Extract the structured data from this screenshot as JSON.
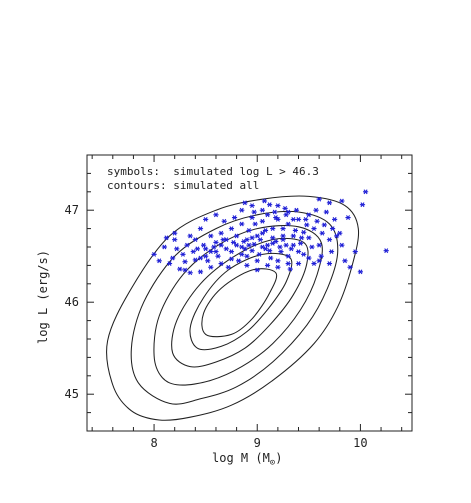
{
  "colors": {
    "points": "#1f1fd6",
    "contours": "#222222",
    "axes": "#222222",
    "background": "#ffffff"
  },
  "chart_data": {
    "type": "scatter",
    "xlabel_parts": [
      "log M (M",
      ")"
    ],
    "xlabel_symbol": "⊙",
    "ylabel": "log L (erg/s)",
    "legend": {
      "line1": "symbols:  simulated log L > 46.3",
      "line2": "contours: simulated all",
      "placement": "top-left"
    },
    "xlim": [
      7.35,
      10.5
    ],
    "ylim": [
      44.6,
      47.6
    ],
    "x_ticks": [
      8,
      9,
      10
    ],
    "x_tick_labels": [
      "8",
      "9",
      "10"
    ],
    "y_ticks": [
      45,
      46,
      47
    ],
    "y_tick_labels": [
      "45",
      "46",
      "47"
    ],
    "x_minor_step": 0.2,
    "y_minor_step": 0.2,
    "grid": false,
    "series": [
      {
        "type": "scatter",
        "marker": "asterisk",
        "points": [
          [
            9.05,
            47.0
          ],
          [
            9.12,
            47.06
          ],
          [
            8.95,
            47.05
          ],
          [
            8.85,
            47.0
          ],
          [
            9.2,
            47.05
          ],
          [
            9.3,
            46.98
          ],
          [
            9.6,
            47.12
          ],
          [
            9.7,
            47.08
          ],
          [
            9.82,
            47.1
          ],
          [
            10.02,
            47.06
          ],
          [
            10.05,
            47.2
          ],
          [
            9.88,
            46.92
          ],
          [
            9.8,
            46.75
          ],
          [
            9.95,
            46.55
          ],
          [
            10.25,
            46.56
          ],
          [
            10.0,
            46.33
          ],
          [
            9.55,
            46.42
          ],
          [
            9.45,
            46.52
          ],
          [
            9.35,
            46.62
          ],
          [
            9.25,
            46.72
          ],
          [
            9.15,
            46.8
          ],
          [
            9.05,
            46.88
          ],
          [
            8.95,
            46.92
          ],
          [
            8.85,
            46.85
          ],
          [
            8.75,
            46.8
          ],
          [
            8.65,
            46.75
          ],
          [
            8.55,
            46.72
          ],
          [
            8.45,
            46.8
          ],
          [
            8.35,
            46.72
          ],
          [
            8.2,
            46.68
          ],
          [
            8.12,
            46.7
          ],
          [
            8.0,
            46.52
          ],
          [
            8.05,
            46.45
          ],
          [
            8.15,
            46.42
          ],
          [
            8.25,
            46.36
          ],
          [
            8.35,
            46.32
          ],
          [
            8.45,
            46.33
          ],
          [
            8.55,
            46.38
          ],
          [
            8.65,
            46.42
          ],
          [
            8.75,
            46.47
          ],
          [
            8.85,
            46.52
          ],
          [
            8.95,
            46.56
          ],
          [
            9.05,
            46.6
          ],
          [
            9.15,
            46.64
          ],
          [
            9.25,
            46.68
          ],
          [
            9.35,
            46.72
          ],
          [
            9.45,
            46.76
          ],
          [
            9.55,
            46.8
          ],
          [
            9.65,
            46.84
          ],
          [
            9.75,
            46.9
          ],
          [
            9.5,
            46.95
          ],
          [
            9.4,
            46.9
          ],
          [
            9.3,
            46.85
          ],
          [
            9.2,
            46.9
          ],
          [
            9.1,
            46.95
          ],
          [
            9.0,
            46.72
          ],
          [
            8.9,
            46.68
          ],
          [
            8.8,
            46.62
          ],
          [
            8.7,
            46.58
          ],
          [
            8.6,
            46.55
          ],
          [
            8.5,
            46.5
          ],
          [
            8.4,
            46.46
          ],
          [
            8.3,
            46.44
          ],
          [
            8.9,
            46.4
          ],
          [
            9.0,
            46.35
          ],
          [
            9.1,
            46.4
          ],
          [
            9.2,
            46.45
          ],
          [
            9.3,
            46.5
          ],
          [
            9.4,
            46.42
          ],
          [
            9.6,
            46.62
          ],
          [
            9.7,
            46.68
          ],
          [
            9.5,
            46.7
          ],
          [
            8.78,
            46.92
          ],
          [
            8.68,
            46.88
          ],
          [
            8.58,
            46.6
          ],
          [
            8.48,
            46.62
          ],
          [
            8.38,
            46.55
          ],
          [
            8.28,
            46.52
          ],
          [
            8.18,
            46.48
          ],
          [
            8.92,
            46.78
          ],
          [
            9.02,
            46.52
          ],
          [
            9.12,
            46.56
          ],
          [
            9.22,
            46.6
          ],
          [
            9.32,
            46.36
          ],
          [
            9.42,
            46.64
          ],
          [
            9.62,
            46.5
          ],
          [
            9.72,
            46.55
          ],
          [
            9.82,
            46.62
          ],
          [
            9.58,
            46.88
          ],
          [
            9.48,
            46.84
          ],
          [
            9.38,
            47.0
          ],
          [
            9.28,
            46.95
          ],
          [
            9.18,
            46.92
          ],
          [
            9.08,
            46.78
          ],
          [
            8.98,
            46.85
          ],
          [
            8.88,
            46.58
          ],
          [
            8.82,
            46.45
          ],
          [
            8.72,
            46.38
          ],
          [
            8.62,
            46.5
          ],
          [
            8.52,
            46.45
          ],
          [
            8.42,
            46.58
          ],
          [
            8.32,
            46.62
          ],
          [
            8.22,
            46.58
          ],
          [
            8.92,
            46.62
          ],
          [
            9.03,
            46.68
          ],
          [
            9.13,
            46.48
          ],
          [
            9.23,
            46.55
          ],
          [
            9.33,
            46.58
          ],
          [
            9.43,
            46.7
          ],
          [
            9.53,
            46.6
          ],
          [
            9.63,
            46.75
          ],
          [
            9.73,
            46.8
          ],
          [
            8.97,
            46.98
          ],
          [
            9.07,
            47.1
          ],
          [
            8.88,
            47.08
          ],
          [
            9.17,
            46.98
          ],
          [
            9.27,
            47.02
          ],
          [
            9.37,
            46.78
          ],
          [
            9.47,
            46.9
          ],
          [
            9.57,
            47.0
          ],
          [
            9.67,
            46.98
          ],
          [
            9.77,
            46.72
          ],
          [
            8.7,
            46.68
          ],
          [
            8.6,
            46.65
          ],
          [
            8.5,
            46.58
          ],
          [
            8.4,
            46.68
          ],
          [
            8.3,
            46.35
          ],
          [
            8.8,
            46.72
          ],
          [
            8.9,
            46.5
          ],
          [
            9.0,
            46.45
          ],
          [
            9.1,
            46.62
          ],
          [
            9.2,
            46.38
          ],
          [
            9.3,
            46.42
          ],
          [
            9.4,
            46.55
          ],
          [
            9.5,
            46.48
          ],
          [
            8.95,
            46.7
          ],
          [
            9.05,
            46.75
          ],
          [
            9.15,
            46.7
          ],
          [
            9.25,
            46.8
          ],
          [
            9.35,
            46.9
          ],
          [
            8.85,
            46.6
          ],
          [
            8.75,
            46.55
          ],
          [
            8.65,
            46.62
          ],
          [
            8.55,
            46.55
          ],
          [
            8.45,
            46.48
          ],
          [
            8.97,
            46.63
          ],
          [
            9.08,
            46.58
          ],
          [
            9.18,
            46.66
          ],
          [
            9.28,
            46.62
          ],
          [
            8.87,
            46.66
          ],
          [
            8.77,
            46.65
          ],
          [
            8.67,
            46.68
          ],
          [
            9.6,
            46.45
          ],
          [
            9.7,
            46.42
          ],
          [
            9.85,
            46.45
          ],
          [
            9.9,
            46.38
          ],
          [
            8.1,
            46.6
          ],
          [
            8.2,
            46.75
          ],
          [
            8.5,
            46.9
          ],
          [
            8.6,
            46.95
          ]
        ]
      }
    ],
    "contours": [
      [
        [
          8.05,
          44.72
        ],
        [
          8.35,
          44.75
        ],
        [
          8.75,
          44.88
        ],
        [
          9.15,
          45.15
        ],
        [
          9.55,
          45.55
        ],
        [
          9.78,
          45.95
        ],
        [
          9.92,
          46.4
        ],
        [
          9.98,
          46.8
        ],
        [
          9.85,
          47.05
        ],
        [
          9.5,
          47.15
        ],
        [
          9.05,
          47.12
        ],
        [
          8.6,
          47.0
        ],
        [
          8.15,
          46.72
        ],
        [
          7.78,
          46.15
        ],
        [
          7.55,
          45.58
        ],
        [
          7.6,
          45.1
        ],
        [
          7.78,
          44.82
        ]
      ],
      [
        [
          8.15,
          44.9
        ],
        [
          8.45,
          44.95
        ],
        [
          8.8,
          45.08
        ],
        [
          9.15,
          45.35
        ],
        [
          9.48,
          45.75
        ],
        [
          9.68,
          46.15
        ],
        [
          9.78,
          46.55
        ],
        [
          9.7,
          46.85
        ],
        [
          9.4,
          46.98
        ],
        [
          9.0,
          46.95
        ],
        [
          8.6,
          46.8
        ],
        [
          8.2,
          46.5
        ],
        [
          7.9,
          46.0
        ],
        [
          7.78,
          45.5
        ],
        [
          7.85,
          45.12
        ]
      ],
      [
        [
          8.25,
          45.1
        ],
        [
          8.55,
          45.15
        ],
        [
          8.85,
          45.3
        ],
        [
          9.15,
          45.55
        ],
        [
          9.42,
          45.92
        ],
        [
          9.58,
          46.3
        ],
        [
          9.62,
          46.65
        ],
        [
          9.4,
          46.82
        ],
        [
          9.0,
          46.8
        ],
        [
          8.62,
          46.62
        ],
        [
          8.28,
          46.3
        ],
        [
          8.05,
          45.85
        ],
        [
          8.0,
          45.42
        ],
        [
          8.08,
          45.18
        ]
      ],
      [
        [
          8.35,
          45.3
        ],
        [
          8.6,
          45.35
        ],
        [
          8.88,
          45.5
        ],
        [
          9.12,
          45.75
        ],
        [
          9.35,
          46.08
        ],
        [
          9.48,
          46.42
        ],
        [
          9.45,
          46.65
        ],
        [
          9.15,
          46.68
        ],
        [
          8.78,
          46.5
        ],
        [
          8.45,
          46.2
        ],
        [
          8.22,
          45.8
        ],
        [
          8.18,
          45.45
        ]
      ],
      [
        [
          8.42,
          45.5
        ],
        [
          8.65,
          45.52
        ],
        [
          8.9,
          45.68
        ],
        [
          9.1,
          45.92
        ],
        [
          9.28,
          46.22
        ],
        [
          9.32,
          46.48
        ],
        [
          9.05,
          46.52
        ],
        [
          8.72,
          46.35
        ],
        [
          8.48,
          46.05
        ],
        [
          8.35,
          45.72
        ]
      ],
      [
        [
          8.5,
          45.65
        ],
        [
          8.75,
          45.65
        ],
        [
          8.95,
          45.82
        ],
        [
          9.12,
          46.1
        ],
        [
          9.18,
          46.32
        ],
        [
          8.95,
          46.35
        ],
        [
          8.65,
          46.15
        ],
        [
          8.48,
          45.88
        ]
      ]
    ]
  }
}
